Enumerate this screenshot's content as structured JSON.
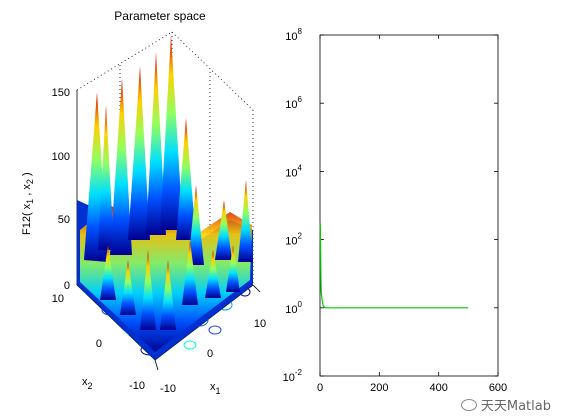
{
  "figure": {
    "left_plot": {
      "title": "Parameter space",
      "zlabel_main": "F12( x",
      "zlabel_sub1": "1",
      "zlabel_mid": " , x",
      "zlabel_sub2": "2",
      "zlabel_end": " )",
      "z_ticks": [
        "0",
        "50",
        "100",
        "150"
      ],
      "x1_ticks": [
        "-10",
        "0",
        "10"
      ],
      "x2_ticks": [
        "10",
        "0",
        "-10"
      ],
      "x1_label_main": "x",
      "x1_label_sub": "1",
      "x2_label_main": "x",
      "x2_label_sub": "2",
      "colormap": "jet"
    },
    "right_plot": {
      "y_tick_bases": [
        "10",
        "10",
        "10",
        "10",
        "10",
        "10"
      ],
      "y_tick_exps": [
        "-2",
        "0",
        "2",
        "4",
        "6",
        "8"
      ],
      "x_ticks": [
        "0",
        "200",
        "400",
        "600"
      ],
      "line_color": "#00cc00"
    },
    "watermark": "天天Matlab"
  },
  "chart_data": {
    "type": "line",
    "yscale": "log",
    "xlim": [
      0,
      600
    ],
    "ylim": [
      0.01,
      100000000
    ],
    "series": [
      {
        "x": [
          1,
          2,
          3,
          4,
          6,
          8,
          10,
          15,
          20,
          40,
          100,
          200,
          300,
          400,
          500
        ],
        "y": [
          300,
          60,
          8,
          3,
          2,
          1.5,
          1.2,
          1.05,
          1.0,
          1.0,
          1.0,
          1.0,
          1.0,
          1.0,
          1.0
        ]
      }
    ]
  }
}
